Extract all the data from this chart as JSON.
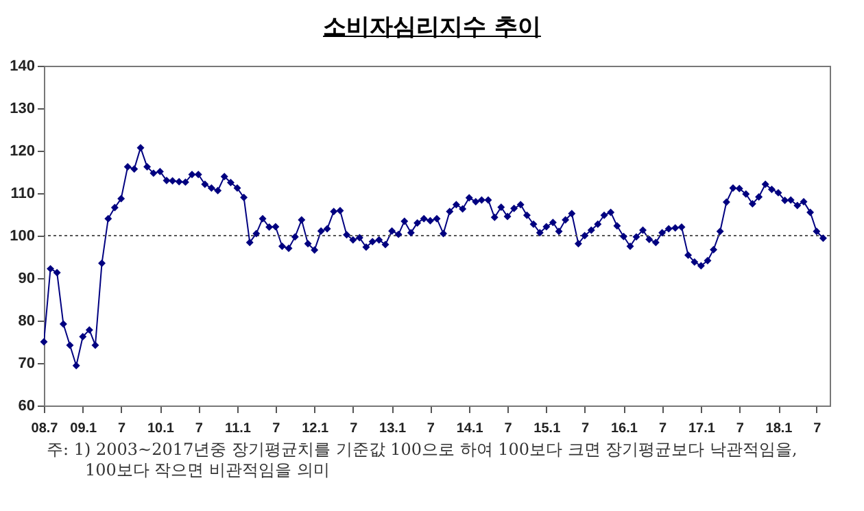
{
  "chart_data": {
    "type": "line",
    "title": "소비자심리지수 추이",
    "x": [
      "2008-07",
      "2008-08",
      "2008-09",
      "2008-10",
      "2008-11",
      "2008-12",
      "2009-01",
      "2009-02",
      "2009-03",
      "2009-04",
      "2009-05",
      "2009-06",
      "2009-07",
      "2009-08",
      "2009-09",
      "2009-10",
      "2009-11",
      "2009-12",
      "2010-01",
      "2010-02",
      "2010-03",
      "2010-04",
      "2010-05",
      "2010-06",
      "2010-07",
      "2010-08",
      "2010-09",
      "2010-10",
      "2010-11",
      "2010-12",
      "2011-01",
      "2011-02",
      "2011-03",
      "2011-04",
      "2011-05",
      "2011-06",
      "2011-07",
      "2011-08",
      "2011-09",
      "2011-10",
      "2011-11",
      "2011-12",
      "2012-01",
      "2012-02",
      "2012-03",
      "2012-04",
      "2012-05",
      "2012-06",
      "2012-07",
      "2012-08",
      "2012-09",
      "2012-10",
      "2012-11",
      "2012-12",
      "2013-01",
      "2013-02",
      "2013-03",
      "2013-04",
      "2013-05",
      "2013-06",
      "2013-07",
      "2013-08",
      "2013-09",
      "2013-10",
      "2013-11",
      "2013-12",
      "2014-01",
      "2014-02",
      "2014-03",
      "2014-04",
      "2014-05",
      "2014-06",
      "2014-07",
      "2014-08",
      "2014-09",
      "2014-10",
      "2014-11",
      "2014-12",
      "2015-01",
      "2015-02",
      "2015-03",
      "2015-04",
      "2015-05",
      "2015-06",
      "2015-07",
      "2015-08",
      "2015-09",
      "2015-10",
      "2015-11",
      "2015-12",
      "2016-01",
      "2016-02",
      "2016-03",
      "2016-04",
      "2016-05",
      "2016-06",
      "2016-07",
      "2016-08",
      "2016-09",
      "2016-10",
      "2016-11",
      "2016-12",
      "2017-01",
      "2017-02",
      "2017-03",
      "2017-04",
      "2017-05",
      "2017-06",
      "2017-07",
      "2017-08",
      "2017-09",
      "2017-10",
      "2017-11",
      "2017-12",
      "2018-01",
      "2018-02",
      "2018-03",
      "2018-04",
      "2018-05",
      "2018-06",
      "2018-07",
      "2018-08"
    ],
    "series": [
      {
        "color": "#000080",
        "values": [
          75,
          92.2,
          91.3,
          79.2,
          74.2,
          69.4,
          76.2,
          77.8,
          74.2,
          93.5,
          104,
          106.6,
          108.7,
          116.2,
          115.7,
          120.7,
          116.2,
          114.7,
          115.1,
          113,
          112.9,
          112.7,
          112.6,
          114.4,
          114.4,
          112.1,
          111.2,
          110.6,
          113.9,
          112.5,
          111.2,
          109,
          98.4,
          100.5,
          104,
          102,
          102.1,
          97.5,
          97,
          99.7,
          103.7,
          98.1,
          96.6,
          101.1,
          101.6,
          105.7,
          105.9,
          100.2,
          99,
          99.5,
          97.3,
          98.6,
          99,
          97.9,
          101.1,
          100.3,
          103.4,
          100.7,
          103,
          104,
          103.5,
          104,
          100.5,
          105.7,
          107.3,
          106.3,
          108.9,
          108,
          108.4,
          108.4,
          104.3,
          106.7,
          104.5,
          106.4,
          107.3,
          104.8,
          102.7,
          100.7,
          102.1,
          103.1,
          101,
          103.7,
          105.2,
          98.1,
          100,
          101.3,
          102.7,
          104.8,
          105.5,
          102.3,
          99.8,
          97.5,
          99.7,
          101.3,
          99.1,
          98.4,
          100.7,
          101.6,
          101.8,
          102,
          95.4,
          93.8,
          92.9,
          94.1,
          96.7,
          101,
          107.9,
          111.2,
          111.1,
          109.8,
          107.5,
          109.1,
          112.1,
          110.9,
          110.1,
          108.3,
          108.4,
          107.1,
          108,
          105.5,
          101,
          99.4
        ]
      }
    ],
    "xlim": [
      "2008-07",
      "2018-09"
    ],
    "xticks": [
      {
        "value": "2008-07",
        "label": "08.7"
      },
      {
        "value": "2009-01",
        "label": "09.1"
      },
      {
        "value": "2009-07",
        "label": "7"
      },
      {
        "value": "2010-01",
        "label": "10.1"
      },
      {
        "value": "2010-07",
        "label": "7"
      },
      {
        "value": "2011-01",
        "label": "11.1"
      },
      {
        "value": "2011-07",
        "label": "7"
      },
      {
        "value": "2012-01",
        "label": "12.1"
      },
      {
        "value": "2012-07",
        "label": "7"
      },
      {
        "value": "2013-01",
        "label": "13.1"
      },
      {
        "value": "2013-07",
        "label": "7"
      },
      {
        "value": "2014-01",
        "label": "14.1"
      },
      {
        "value": "2014-07",
        "label": "7"
      },
      {
        "value": "2015-01",
        "label": "15.1"
      },
      {
        "value": "2015-07",
        "label": "7"
      },
      {
        "value": "2016-01",
        "label": "16.1"
      },
      {
        "value": "2016-07",
        "label": "7"
      },
      {
        "value": "2017-01",
        "label": "17.1"
      },
      {
        "value": "2017-07",
        "label": "7"
      },
      {
        "value": "2018-01",
        "label": "18.1"
      },
      {
        "value": "2018-07",
        "label": "7"
      }
    ],
    "ylim": [
      60,
      140
    ],
    "yticks": [
      60,
      70,
      80,
      90,
      100,
      110,
      120,
      130,
      140
    ],
    "ref_lines": [
      {
        "axis": "y",
        "value": 100,
        "color": "#555555",
        "line_style": "dotted"
      }
    ],
    "marker": "diamond",
    "line_style": "solid",
    "grid": false,
    "annotations": [
      "주: 1) 2003~2017년중 장기평균치를 기준값 100으로 하여 100보다 크면 장기평균보다 낙관적임을, 100보다 작으면 비관적임을 의미"
    ]
  }
}
